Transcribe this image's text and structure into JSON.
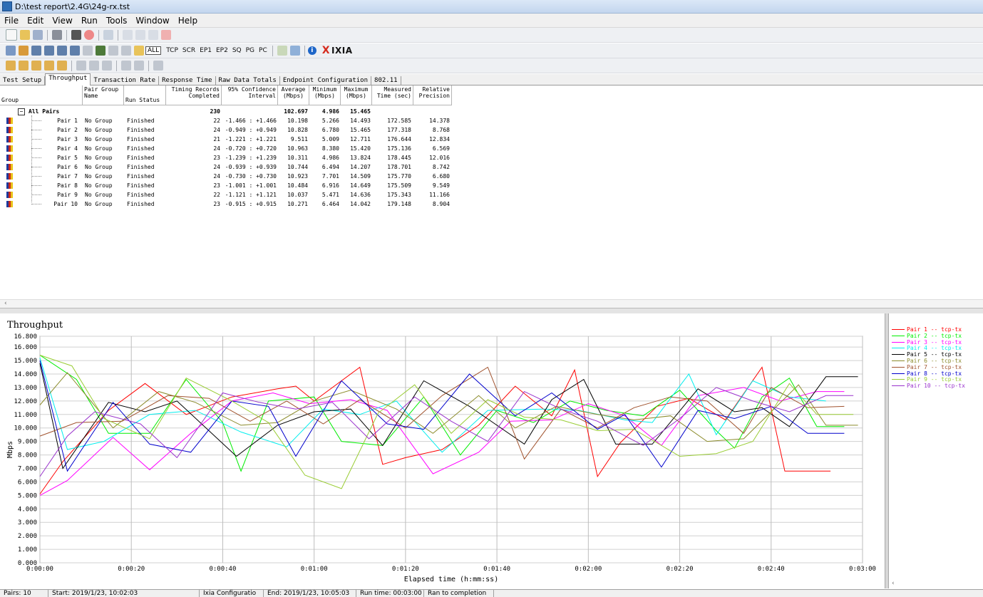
{
  "window": {
    "title": "D:\\test report\\2.4G\\24g-rx.tst"
  },
  "menu": [
    "File",
    "Edit",
    "View",
    "Run",
    "Tools",
    "Window",
    "Help"
  ],
  "toolbar2": {
    "all": "ALL",
    "modes": [
      "TCP",
      "SCR",
      "EP1",
      "EP2",
      "SQ",
      "PG",
      "PC"
    ],
    "brand": "IXIA",
    "brand_x": "X"
  },
  "tabs": [
    "Test Setup",
    "Throughput",
    "Transaction Rate",
    "Response Time",
    "Raw Data Totals",
    "Endpoint Configuration",
    "802.11"
  ],
  "active_tab": "Throughput",
  "table": {
    "headers": {
      "group": "Group",
      "pair_group_name": "Pair Group Name",
      "run_status": "Run Status",
      "timing_records": "Timing Records Completed",
      "confidence": "95% Confidence Interval",
      "average": "Average (Mbps)",
      "minimum": "Minimum (Mbps)",
      "maximum": "Maximum (Mbps)",
      "measured_time": "Measured Time (sec)",
      "relative_precision": "Relative Precision"
    },
    "summary": {
      "label": "All Pairs",
      "expand": "−",
      "records": "230",
      "average": "102.697",
      "minimum": "4.986",
      "maximum": "15.465"
    },
    "rows": [
      {
        "pair": "Pair 1",
        "group": "No Group",
        "status": "Finished",
        "records": "22",
        "ci": "-1.466 : +1.466",
        "avg": "10.198",
        "min": "5.266",
        "max": "14.493",
        "time": "172.585",
        "prec": "14.378"
      },
      {
        "pair": "Pair 2",
        "group": "No Group",
        "status": "Finished",
        "records": "24",
        "ci": "-0.949 : +0.949",
        "avg": "10.828",
        "min": "6.780",
        "max": "15.465",
        "time": "177.318",
        "prec": "8.768"
      },
      {
        "pair": "Pair 3",
        "group": "No Group",
        "status": "Finished",
        "records": "21",
        "ci": "-1.221 : +1.221",
        "avg": "9.511",
        "min": "5.009",
        "max": "12.711",
        "time": "176.644",
        "prec": "12.834"
      },
      {
        "pair": "Pair 4",
        "group": "No Group",
        "status": "Finished",
        "records": "24",
        "ci": "-0.720 : +0.720",
        "avg": "10.963",
        "min": "8.380",
        "max": "15.420",
        "time": "175.136",
        "prec": "6.569"
      },
      {
        "pair": "Pair 5",
        "group": "No Group",
        "status": "Finished",
        "records": "23",
        "ci": "-1.239 : +1.239",
        "avg": "10.311",
        "min": "4.986",
        "max": "13.824",
        "time": "178.445",
        "prec": "12.016"
      },
      {
        "pair": "Pair 6",
        "group": "No Group",
        "status": "Finished",
        "records": "24",
        "ci": "-0.939 : +0.939",
        "avg": "10.744",
        "min": "6.494",
        "max": "14.207",
        "time": "178.701",
        "prec": "8.742"
      },
      {
        "pair": "Pair 7",
        "group": "No Group",
        "status": "Finished",
        "records": "24",
        "ci": "-0.730 : +0.730",
        "avg": "10.923",
        "min": "7.701",
        "max": "14.509",
        "time": "175.770",
        "prec": "6.680"
      },
      {
        "pair": "Pair 8",
        "group": "No Group",
        "status": "Finished",
        "records": "23",
        "ci": "-1.001 : +1.001",
        "avg": "10.484",
        "min": "6.916",
        "max": "14.649",
        "time": "175.509",
        "prec": "9.549"
      },
      {
        "pair": "Pair 9",
        "group": "No Group",
        "status": "Finished",
        "records": "22",
        "ci": "-1.121 : +1.121",
        "avg": "10.037",
        "min": "5.471",
        "max": "14.636",
        "time": "175.343",
        "prec": "11.166"
      },
      {
        "pair": "Pair 10",
        "group": "No Group",
        "status": "Finished",
        "records": "23",
        "ci": "-0.915 : +0.915",
        "avg": "10.271",
        "min": "6.464",
        "max": "14.042",
        "time": "179.148",
        "prec": "8.904"
      }
    ]
  },
  "scroll_arrow": "‹",
  "legend_scroll_arrow": "‹",
  "chart_data": {
    "type": "line",
    "title": "Throughput",
    "xlabel": "Elapsed time (h:mm:ss)",
    "ylabel": "Mbps",
    "ylim": [
      0,
      16.8
    ],
    "xlim": [
      0,
      180
    ],
    "yticks": [
      "0.000",
      "1.000",
      "2.000",
      "3.000",
      "4.000",
      "5.000",
      "6.000",
      "7.000",
      "8.000",
      "9.000",
      "10.000",
      "11.000",
      "12.000",
      "13.000",
      "14.000",
      "15.000",
      "16.000",
      "16.800"
    ],
    "ytick_values": [
      0,
      1,
      2,
      3,
      4,
      5,
      6,
      7,
      8,
      9,
      10,
      11,
      12,
      13,
      14,
      15,
      16,
      16.8
    ],
    "xticks": [
      "0:00:00",
      "0:00:20",
      "0:00:40",
      "0:01:00",
      "0:01:20",
      "0:01:40",
      "0:02:00",
      "0:02:20",
      "0:02:40",
      "0:03:00"
    ],
    "xtick_values": [
      0,
      20,
      40,
      60,
      80,
      100,
      120,
      140,
      160,
      180
    ],
    "grid": true,
    "legend_position": "right",
    "series": [
      {
        "name": "Pair 1 -- tcp-tx",
        "color": "#ff0000",
        "x": [
          0,
          5,
          15,
          23,
          32,
          42,
          52,
          56,
          60,
          70,
          75,
          80,
          88,
          96,
          104,
          112,
          117,
          122,
          127,
          135,
          142,
          150,
          158,
          163,
          173
        ],
        "y": [
          5.1,
          7.5,
          11.3,
          13.3,
          11.0,
          12.3,
          12.9,
          13.1,
          12.0,
          14.5,
          7.3,
          7.8,
          8.4,
          10.2,
          13.1,
          10.9,
          14.3,
          6.4,
          8.9,
          11.6,
          12.2,
          10.6,
          14.5,
          6.8,
          6.8
        ]
      },
      {
        "name": "Pair 2 -- tcp-tx",
        "color": "#00ee00",
        "x": [
          0,
          8,
          15,
          24,
          32,
          40,
          44,
          50,
          60,
          66,
          75,
          84,
          92,
          100,
          108,
          116,
          124,
          132,
          140,
          148,
          152,
          158,
          164,
          170,
          176
        ],
        "y": [
          15.4,
          13.6,
          9.6,
          9.6,
          13.6,
          10.4,
          6.8,
          12.0,
          12.3,
          9.0,
          8.7,
          12.3,
          8.0,
          11.3,
          10.4,
          12.0,
          11.3,
          10.9,
          12.8,
          9.8,
          8.5,
          12.3,
          13.7,
          10.1,
          10.1
        ]
      },
      {
        "name": "Pair 3 -- tcp-tx",
        "color": "#ff00ff",
        "x": [
          0,
          6,
          16,
          24,
          33,
          42,
          51,
          59,
          68,
          76,
          86,
          96,
          103,
          112,
          120,
          128,
          136,
          144,
          154,
          162,
          170,
          176
        ],
        "y": [
          5.0,
          6.1,
          9.3,
          6.9,
          9.6,
          12.0,
          12.6,
          11.8,
          12.1,
          11.3,
          6.6,
          8.2,
          10.5,
          10.6,
          11.8,
          10.9,
          8.7,
          12.4,
          13.0,
          12.0,
          12.7,
          12.7
        ]
      },
      {
        "name": "Pair 4 -- tcp-tx",
        "color": "#00eeee",
        "x": [
          0,
          6,
          14,
          24,
          34,
          44,
          54,
          62,
          70,
          78,
          88,
          98,
          110,
          118,
          128,
          134,
          142,
          148,
          156,
          164,
          172
        ],
        "y": [
          15.2,
          8.4,
          9.0,
          11.0,
          11.3,
          9.7,
          8.6,
          11.4,
          11.0,
          12.0,
          8.2,
          11.3,
          11.4,
          11.3,
          10.6,
          10.4,
          14.0,
          9.5,
          13.5,
          12.3,
          12.0
        ]
      },
      {
        "name": "Pair 5 -- tcp-tx",
        "color": "#000000",
        "x": [
          0,
          5,
          15,
          23,
          30,
          43,
          52,
          60,
          68,
          75,
          84,
          94,
          106,
          112,
          119,
          126,
          134,
          144,
          152,
          158,
          164,
          172,
          179
        ],
        "y": [
          14.8,
          7.0,
          11.9,
          11.2,
          12.0,
          7.9,
          10.2,
          11.2,
          11.4,
          8.7,
          13.5,
          11.6,
          8.8,
          12.1,
          13.6,
          8.8,
          8.8,
          12.9,
          11.2,
          11.5,
          10.1,
          13.8,
          13.8
        ]
      },
      {
        "name": "Pair 6 -- tcp-tx",
        "color": "#8b8b2b",
        "x": [
          0,
          6,
          16,
          26,
          34,
          44,
          52,
          60,
          68,
          78,
          86,
          96,
          104,
          113,
          122,
          130,
          138,
          146,
          154,
          160,
          166,
          172,
          179
        ],
        "y": [
          11.7,
          14.1,
          10.0,
          12.7,
          11.9,
          10.2,
          10.4,
          12.0,
          12.8,
          11.4,
          9.6,
          12.4,
          10.0,
          11.6,
          11.0,
          10.6,
          10.9,
          9.0,
          9.2,
          11.2,
          13.2,
          10.2,
          10.2
        ]
      },
      {
        "name": "Pair 7 -- tcp-tx",
        "color": "#a0522d",
        "x": [
          0,
          8,
          18,
          28,
          37,
          46,
          54,
          62,
          70,
          80,
          88,
          98,
          106,
          114,
          122,
          130,
          138,
          146,
          154,
          160,
          168,
          176
        ],
        "y": [
          9.4,
          10.4,
          10.5,
          12.4,
          12.2,
          10.5,
          12.0,
          10.3,
          12.1,
          10.0,
          12.4,
          14.5,
          7.7,
          11.4,
          10.0,
          11.5,
          12.3,
          12.0,
          9.6,
          13.0,
          11.5,
          11.6
        ]
      },
      {
        "name": "Pair 8 -- tcp-tx",
        "color": "#0000cc",
        "x": [
          0,
          6,
          16,
          24,
          33,
          42,
          50,
          56,
          66,
          76,
          84,
          94,
          104,
          112,
          122,
          128,
          136,
          144,
          152,
          160,
          168,
          176
        ],
        "y": [
          15.0,
          6.8,
          11.9,
          8.8,
          8.2,
          12.0,
          11.6,
          7.9,
          13.5,
          10.3,
          9.9,
          14.0,
          10.9,
          12.6,
          9.9,
          11.0,
          7.1,
          11.3,
          10.7,
          11.6,
          9.6,
          9.6
        ]
      },
      {
        "name": "Pair 9 -- tcp-tx",
        "color": "#99cc33",
        "x": [
          0,
          7,
          14,
          24,
          32,
          42,
          50,
          58,
          66,
          74,
          82,
          90,
          98,
          106,
          114,
          122,
          130,
          140,
          148,
          156,
          164,
          170,
          178
        ],
        "y": [
          15.4,
          14.6,
          10.7,
          9.2,
          13.7,
          12.0,
          10.4,
          6.5,
          5.5,
          11.1,
          13.2,
          9.6,
          12.1,
          10.8,
          10.6,
          9.8,
          9.9,
          7.9,
          8.1,
          9.0,
          13.3,
          11.0,
          11.0
        ]
      },
      {
        "name": "Pair 10 -- tcp-tx",
        "color": "#9932cc",
        "x": [
          0,
          6,
          12,
          22,
          30,
          40,
          48,
          56,
          64,
          72,
          82,
          90,
          98,
          106,
          114,
          122,
          132,
          140,
          148,
          156,
          164,
          172,
          178
        ],
        "y": [
          6.4,
          9.4,
          11.2,
          10.3,
          7.8,
          12.6,
          11.9,
          11.4,
          11.9,
          9.2,
          12.3,
          10.5,
          9.0,
          12.7,
          11.4,
          10.5,
          8.7,
          10.7,
          13.0,
          12.0,
          11.2,
          12.4,
          12.4
        ]
      }
    ]
  },
  "status": {
    "pairs": "Pairs: 10",
    "start": "Start: 2019/1/23, 10:02:03",
    "config": "Ixia Configuratio",
    "end": "End: 2019/1/23, 10:05:03",
    "runtime": "Run time: 00:03:00",
    "completion": "Ran to completion"
  }
}
